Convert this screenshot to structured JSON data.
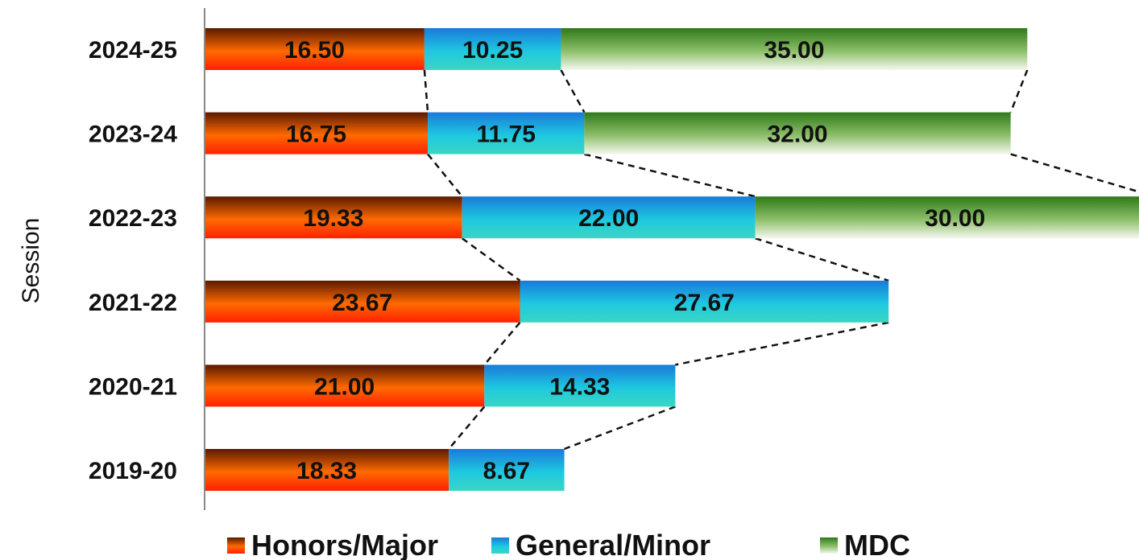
{
  "chart_data": {
    "type": "bar",
    "orientation": "horizontal",
    "stacked": true,
    "ylabel": "Session",
    "xlabel": "",
    "categories": [
      "2024-25",
      "2023-24",
      "2022-23",
      "2021-22",
      "2020-21",
      "2019-20"
    ],
    "series": [
      {
        "name": "Honors/Major",
        "values": [
          16.5,
          16.75,
          19.33,
          23.67,
          21.0,
          18.33
        ],
        "colors": [
          "#5a1a00",
          "#ff6a00",
          "#ff2000"
        ]
      },
      {
        "name": "General/Minor",
        "values": [
          10.25,
          11.75,
          22.0,
          27.67,
          14.33,
          8.67
        ],
        "colors": [
          "#1a7ad9",
          "#1ec8e0",
          "#3ad6c4"
        ]
      },
      {
        "name": "MDC",
        "values": [
          35.0,
          32.0,
          30.0,
          null,
          null,
          null
        ],
        "colors": [
          "#2f7a1a",
          "#8dbf6a",
          "#f4f8ee"
        ]
      }
    ],
    "legend": "bottom",
    "grid": false,
    "connector_lines": "dashed"
  }
}
